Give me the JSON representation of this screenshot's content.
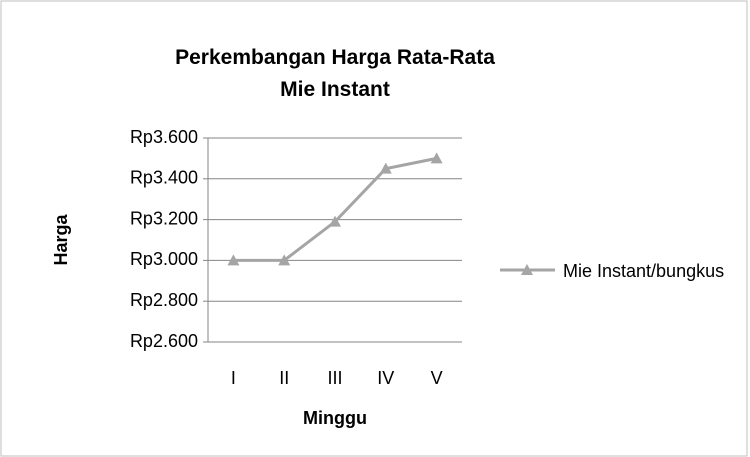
{
  "chart_data": {
    "type": "line",
    "title": "Perkembangan Harga Rata-Rata Mie Instant",
    "x_label": "Minggu",
    "y_label": "Harga",
    "categories": [
      "I",
      "II",
      "III",
      "IV",
      "V"
    ],
    "series": [
      {
        "name": "Mie Instant/bungkus",
        "color": "#a5a5a5",
        "values": [
          3000,
          3000,
          3190,
          3450,
          3500
        ]
      }
    ],
    "ylim": [
      2600,
      3600
    ],
    "yticks": [
      {
        "value": 2600,
        "label": "Rp2.600"
      },
      {
        "value": 2800,
        "label": "Rp2.800"
      },
      {
        "value": 3000,
        "label": "Rp3.000"
      },
      {
        "value": 3200,
        "label": "Rp3.200"
      },
      {
        "value": 3400,
        "label": "Rp3.400"
      },
      {
        "value": 3600,
        "label": "Rp3.600"
      }
    ],
    "grid": true,
    "legend": "right"
  }
}
